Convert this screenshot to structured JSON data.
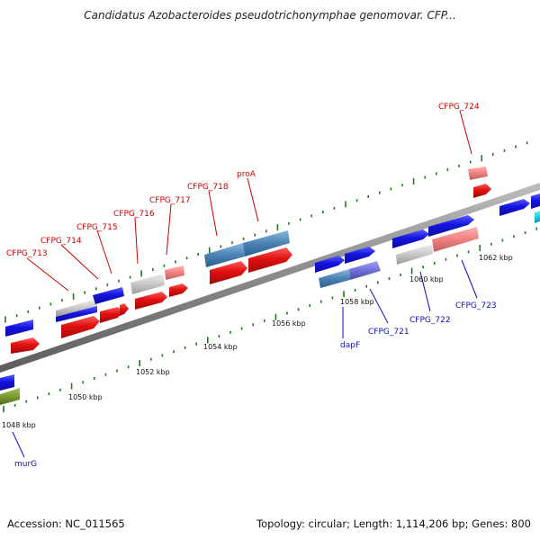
{
  "title": "Candidatus Azobacteroides pseudotrichonymphae genomovar. CFP...",
  "footer": {
    "accession": "Accession: NC_011565",
    "stats": "Topology: circular; Length: 1,114,206 bp; Genes: 800"
  },
  "colors": {
    "backbone": "#8a8a8a",
    "tick": "#1e7a1e",
    "cds_forward": "#1414e0",
    "cds_reverse": "#e01010",
    "rna": "#4a82b4",
    "pseudo": "#c8c8c8",
    "label_red": "#cc0000",
    "label_blue": "#1010bb"
  },
  "kbp_labels": [
    "1048 kbp",
    "1050 kbp",
    "1052 kbp",
    "1054 kbp",
    "1056 kbp",
    "1058 kbp",
    "1060 kbp",
    "1062 kbp"
  ],
  "gene_labels": {
    "CFPG_713": "CFPG_713",
    "CFPG_714": "CFPG_714",
    "CFPG_715": "CFPG_715",
    "CFPG_716": "CFPG_716",
    "CFPG_717": "CFPG_717",
    "CFPG_718": "CFPG_718",
    "proA": "proA",
    "CFPG_724": "CFPG_724",
    "dapF": "dapF",
    "CFPG_721": "CFPG_721",
    "CFPG_722": "CFPG_722",
    "CFPG_723": "CFPG_723",
    "murG": "murG"
  }
}
